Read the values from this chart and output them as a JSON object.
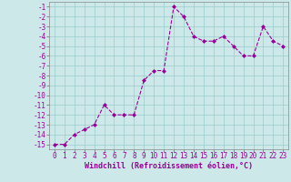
{
  "x": [
    0,
    1,
    2,
    3,
    4,
    5,
    6,
    7,
    8,
    9,
    10,
    11,
    12,
    13,
    14,
    15,
    16,
    17,
    18,
    19,
    20,
    21,
    22,
    23
  ],
  "y": [
    -15,
    -15,
    -14,
    -13.5,
    -13,
    -11,
    -12,
    -12,
    -12,
    -8.5,
    -7.5,
    -7.5,
    -1,
    -2,
    -4,
    -4.5,
    -4.5,
    -4,
    -5,
    -6,
    -6,
    -3,
    -4.5,
    -5
  ],
  "line_color": "#990099",
  "marker": "D",
  "marker_size": 2,
  "bg_color": "#cce8e8",
  "grid_color": "#99cccc",
  "xlabel": "Windchill (Refroidissement éolien,°C)",
  "xlabel_fontsize": 6,
  "ytick_min": -15,
  "ytick_max": -1,
  "xtick_labels": [
    "0",
    "1",
    "2",
    "3",
    "4",
    "5",
    "6",
    "7",
    "8",
    "9",
    "10",
    "11",
    "12",
    "13",
    "14",
    "15",
    "16",
    "17",
    "18",
    "19",
    "20",
    "21",
    "22",
    "23"
  ],
  "tick_fontsize": 5.5,
  "linewidth": 0.8
}
